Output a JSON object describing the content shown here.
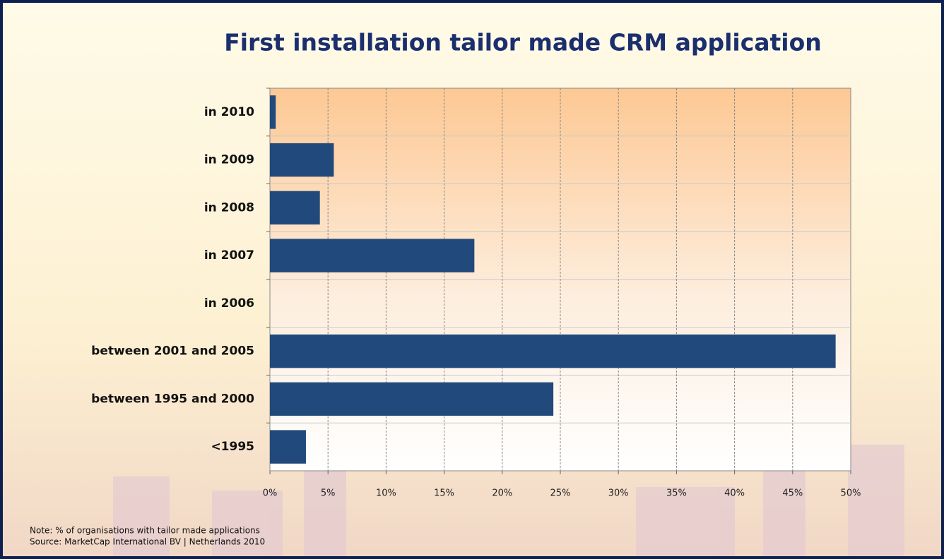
{
  "chart_data": {
    "type": "bar",
    "orientation": "horizontal",
    "title": "First installation tailor made CRM application",
    "categories": [
      "in 2010",
      "in 2009",
      "in 2008",
      "in 2007",
      "in 2006",
      "between 2001 and 2005",
      "between 1995 and 2000",
      "<1995"
    ],
    "values": [
      0.5,
      5.5,
      4.3,
      17.6,
      0,
      48.7,
      24.4,
      3.1
    ],
    "color": "#21497b",
    "xlim": [
      0,
      50
    ],
    "xticks": [
      {
        "value": 0,
        "label": "0%"
      },
      {
        "value": 5,
        "label": "5%"
      },
      {
        "value": 10,
        "label": "10%"
      },
      {
        "value": 15,
        "label": "15%"
      },
      {
        "value": 20,
        "label": "20%"
      },
      {
        "value": 25,
        "label": "25%"
      },
      {
        "value": 30,
        "label": "30%"
      },
      {
        "value": 35,
        "label": "35%"
      },
      {
        "value": 40,
        "label": "40%"
      },
      {
        "value": 45,
        "label": "45%"
      },
      {
        "value": 50,
        "label": "50%"
      }
    ],
    "grid": true,
    "note": "Note: % of organisations with tailor made applications",
    "source": "Source: MarketCap International BV | Netherlands 2010"
  }
}
